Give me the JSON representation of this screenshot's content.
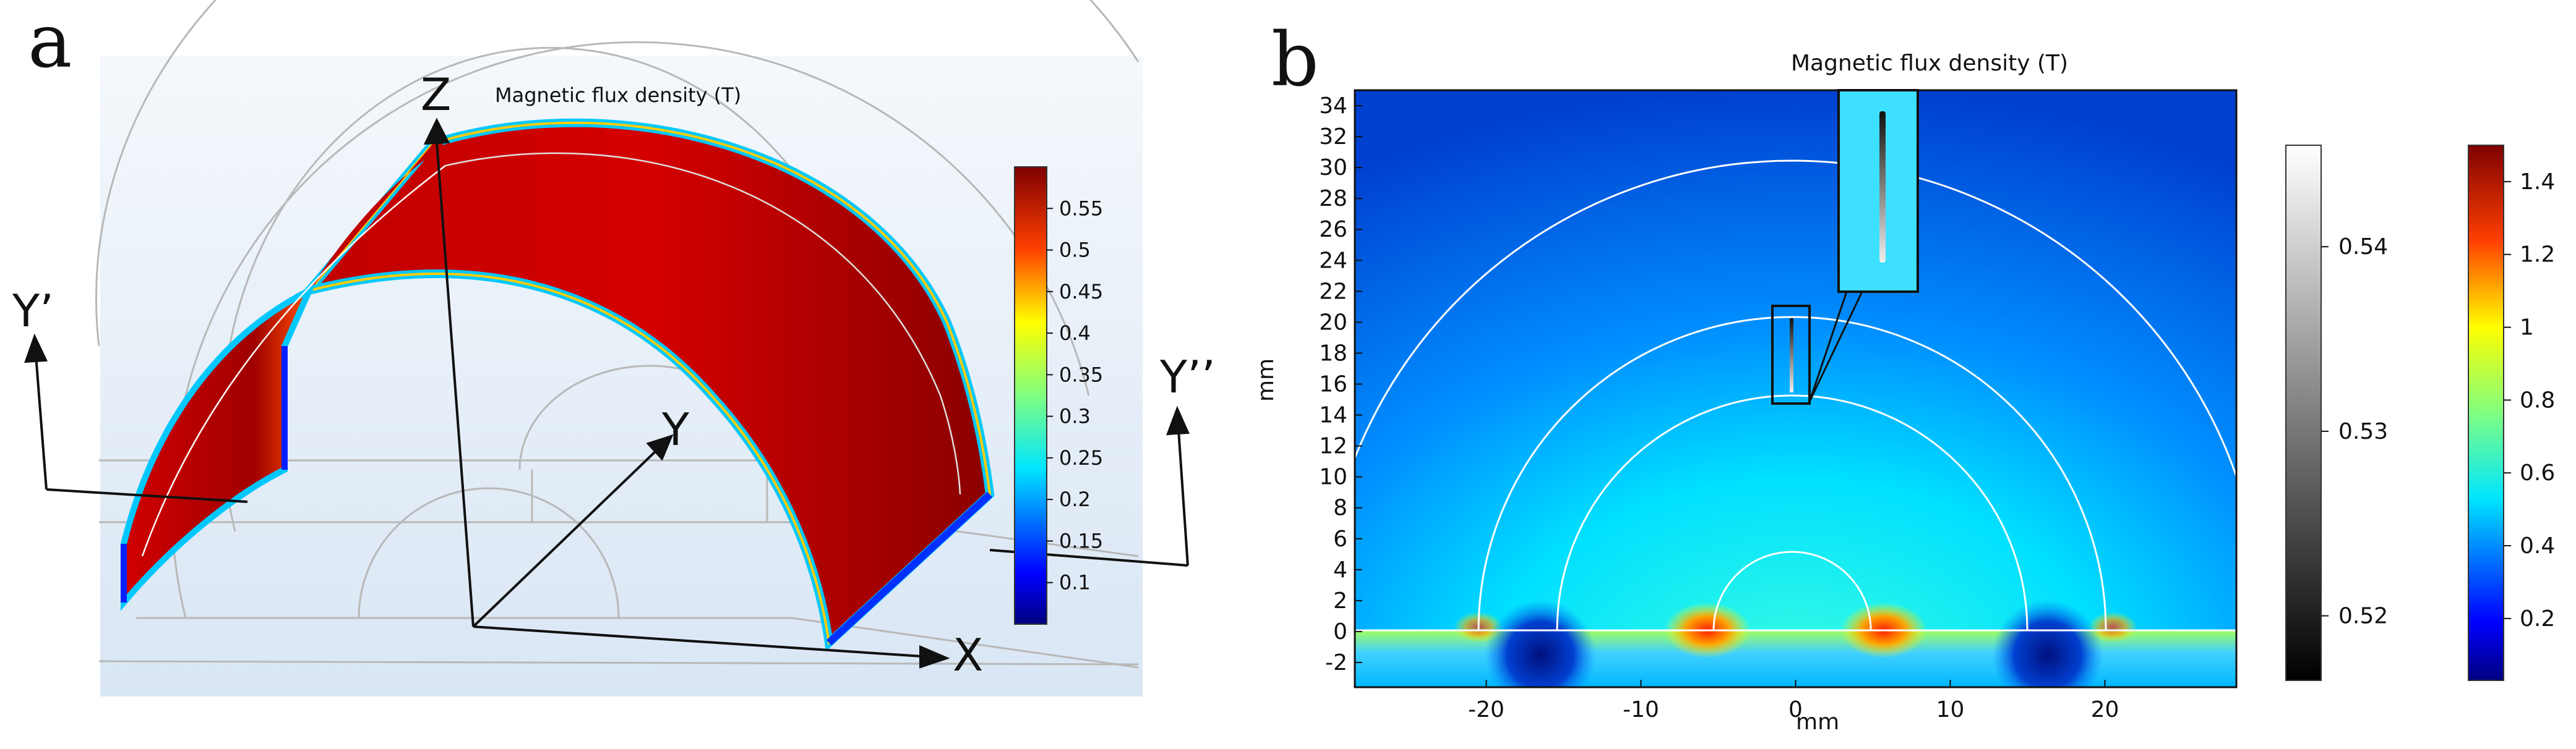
{
  "panel_a": {
    "letter": "a",
    "title": "Magnetic flux density (T)",
    "axis_labels": {
      "z": "Z",
      "y": "Y",
      "x": "X"
    },
    "annotations": {
      "y_prime": "Y’",
      "y_double_prime": "Y’’"
    },
    "colorbar": {
      "ticks": [
        "0.55",
        "0.5",
        "0.45",
        "0.4",
        "0.35",
        "0.3",
        "0.25",
        "0.2",
        "0.15",
        "0.1"
      ],
      "colormap": "jet",
      "colors": [
        "#00007f",
        "#0000ff",
        "#0080ff",
        "#00ffff",
        "#80ff80",
        "#ffff00",
        "#ff8000",
        "#ff0000",
        "#7f0000"
      ]
    }
  },
  "panel_b": {
    "letter": "b",
    "title": "Magnetic flux density (T)",
    "xlabel": "mm",
    "ylabel": "mm",
    "x_ticks": [
      "-20",
      "-10",
      "0",
      "10",
      "20"
    ],
    "y_ticks": [
      "34",
      "32",
      "30",
      "28",
      "26",
      "24",
      "22",
      "20",
      "18",
      "16",
      "14",
      "12",
      "10",
      "8",
      "6",
      "4",
      "2",
      "0",
      "-2"
    ],
    "colorbar_gray": {
      "ticks": [
        "0.54",
        "0.53",
        "0.52"
      ],
      "colors": [
        "#ffffff",
        "#000000"
      ]
    },
    "colorbar_jet": {
      "ticks": [
        "1.4",
        "1.2",
        "1",
        "0.8",
        "0.6",
        "0.4",
        "0.2"
      ],
      "colormap": "jet"
    }
  }
}
